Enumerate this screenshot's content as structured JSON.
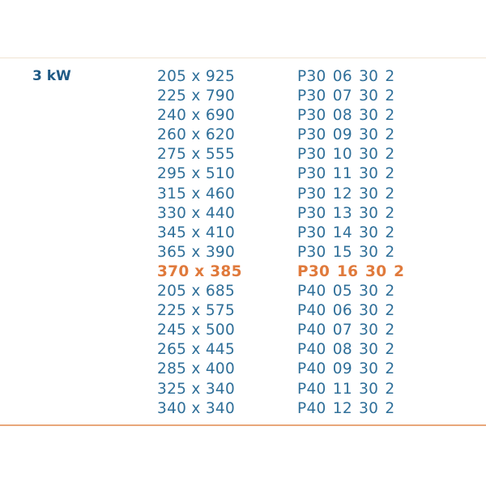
{
  "power": "3 kW",
  "colors": {
    "text": "#2f6f99",
    "highlight": "#e07a3c",
    "label": "#1f5a85"
  },
  "rows": [
    {
      "size": "205 x 925",
      "code": "P30 06 30 2",
      "highlight": false
    },
    {
      "size": "225 x 790",
      "code": "P30 07 30 2",
      "highlight": false
    },
    {
      "size": "240 x 690",
      "code": "P30 08 30 2",
      "highlight": false
    },
    {
      "size": "260 x 620",
      "code": "P30 09 30 2",
      "highlight": false
    },
    {
      "size": "275 x 555",
      "code": "P30 10 30 2",
      "highlight": false
    },
    {
      "size": "295 x 510",
      "code": "P30 11 30 2",
      "highlight": false
    },
    {
      "size": "315 x 460",
      "code": "P30 12 30 2",
      "highlight": false
    },
    {
      "size": "330 x 440",
      "code": "P30 13 30 2",
      "highlight": false
    },
    {
      "size": "345 x 410",
      "code": "P30 14 30 2",
      "highlight": false
    },
    {
      "size": "365 x 390",
      "code": "P30 15 30 2",
      "highlight": false
    },
    {
      "size": "370 x 385",
      "code": "P30 16 30 2",
      "highlight": true
    },
    {
      "size": "205 x 685",
      "code": "P40 05 30 2",
      "highlight": false
    },
    {
      "size": "225 x 575",
      "code": "P40 06 30 2",
      "highlight": false
    },
    {
      "size": "245 x 500",
      "code": "P40 07 30 2",
      "highlight": false
    },
    {
      "size": "265 x 445",
      "code": "P40 08 30 2",
      "highlight": false
    },
    {
      "size": "285 x 400",
      "code": "P40 09 30 2",
      "highlight": false
    },
    {
      "size": "325 x 340",
      "code": "P40 11 30 2",
      "highlight": false
    },
    {
      "size": "340 x 340",
      "code": "P40 12 30 2",
      "highlight": false
    }
  ]
}
